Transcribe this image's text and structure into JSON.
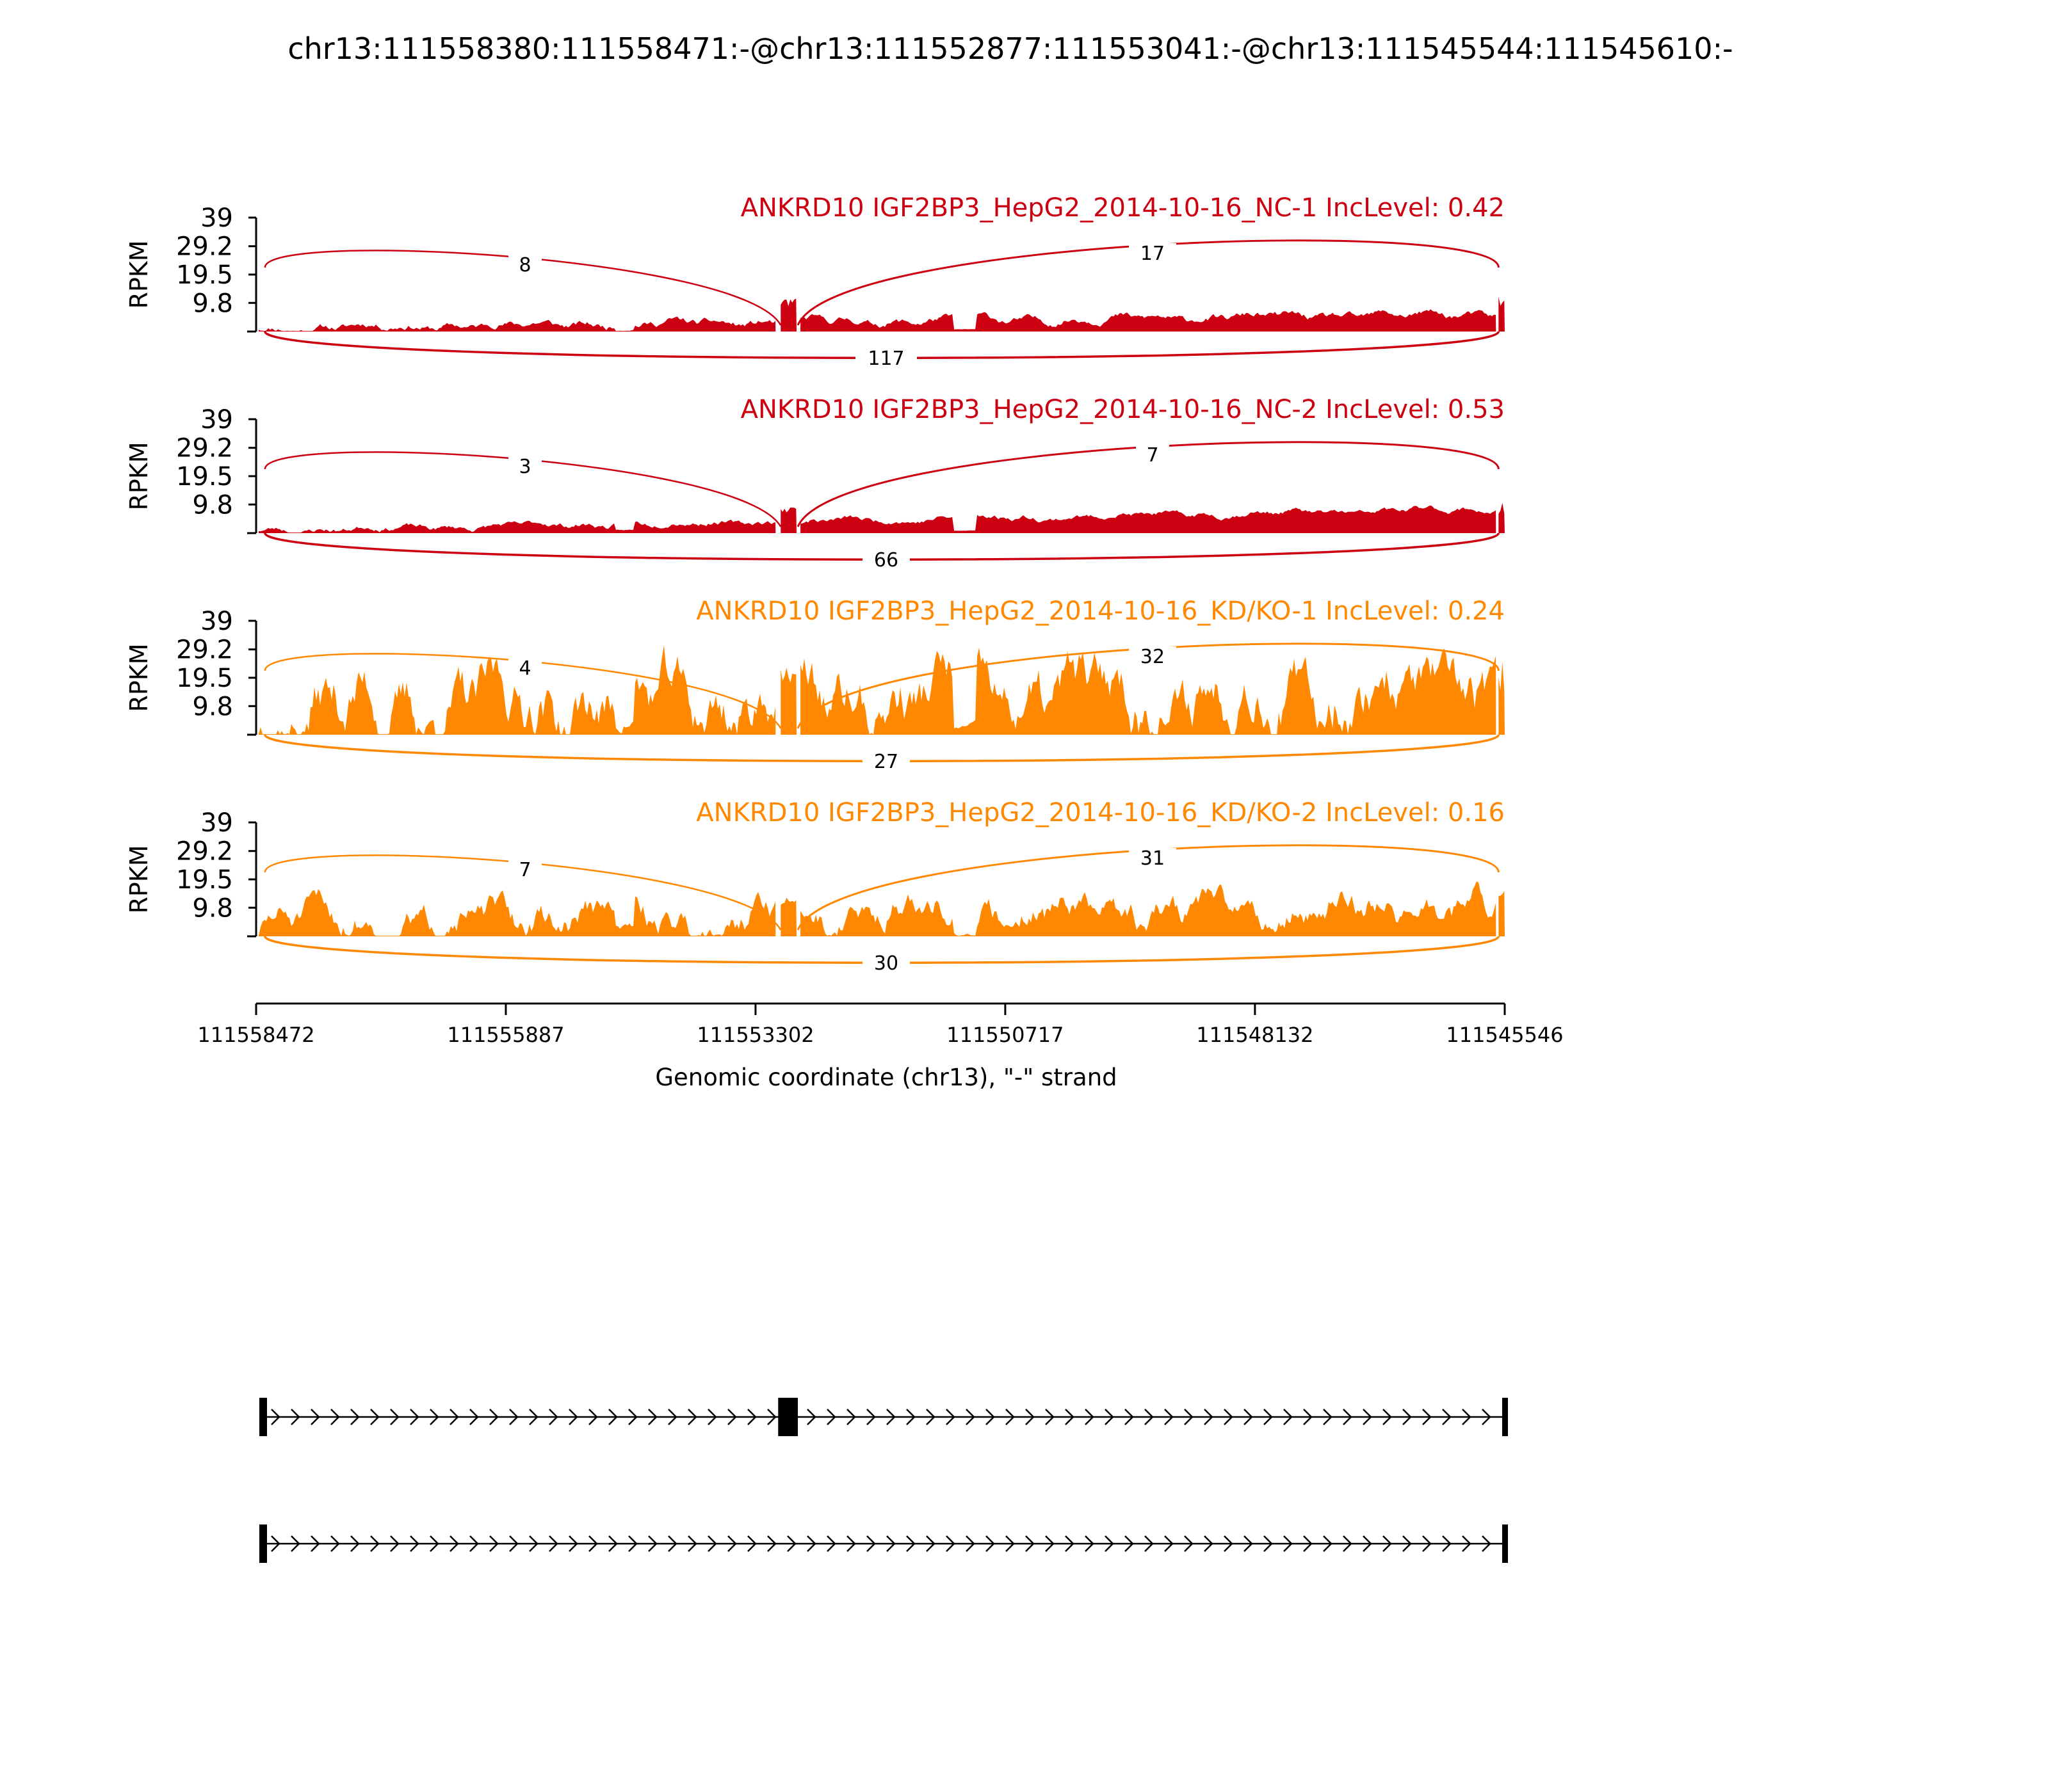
{
  "chart_data": {
    "type": "area",
    "title": "chr13:111558380:111558471:-@chr13:111552877:111553041:-@chr13:111545544:111545610:-",
    "xlabel": "Genomic coordinate (chr13), \"-\" strand",
    "x_ticks": [
      "111558472",
      "111555887",
      "111553302",
      "111550717",
      "111548132",
      "111545546"
    ],
    "xlim": [
      111558472,
      111545546
    ],
    "ylabel": "RPKM",
    "y_ticks": [
      "39",
      "29.2",
      "19.5",
      "9.8"
    ],
    "ylim": [
      0,
      39
    ],
    "exons": [
      {
        "start": 111558471,
        "end": 111558380
      },
      {
        "start": 111553041,
        "end": 111552877
      },
      {
        "start": 111545610,
        "end": 111545544
      }
    ],
    "series": [
      {
        "name": "ANKRD10 IGF2BP3_HepG2_2014-10-16_NC-1 IncLevel: 0.42",
        "color": "#cc0011",
        "baseline": 1.3,
        "peak": 10,
        "right_rise": 10,
        "jitter": 0.9,
        "seed": 11,
        "junctions": {
          "upstream_inclusion": "8",
          "downstream_inclusion": "17",
          "skipping": "117"
        }
      },
      {
        "name": "ANKRD10 IGF2BP3_HepG2_2014-10-16_NC-2 IncLevel: 0.53",
        "color": "#cc0011",
        "baseline": 1.0,
        "peak": 8,
        "right_rise": 16,
        "jitter": 0.9,
        "seed": 23,
        "junctions": {
          "upstream_inclusion": "3",
          "downstream_inclusion": "7",
          "skipping": "66"
        }
      },
      {
        "name": "ANKRD10 IGF2BP3_HepG2_2014-10-16_KD/KO-1 IncLevel: 0.24",
        "color": "#ff8800",
        "baseline": 9,
        "peak": 20,
        "right_rise": 14,
        "jitter": 1.0,
        "seed": 37,
        "junctions": {
          "upstream_inclusion": "4",
          "downstream_inclusion": "32",
          "skipping": "27"
        }
      },
      {
        "name": "ANKRD10 IGF2BP3_HepG2_2014-10-16_KD/KO-2 IncLevel: 0.16",
        "color": "#ff8800",
        "baseline": 5,
        "peak": 12,
        "right_rise": 12,
        "jitter": 0.9,
        "seed": 51,
        "junctions": {
          "upstream_inclusion": "7",
          "downstream_inclusion": "31",
          "skipping": "30"
        }
      }
    ],
    "isoforms": [
      {
        "exons": [
          0,
          1,
          2
        ]
      },
      {
        "exons": [
          0,
          2
        ]
      }
    ],
    "grid": false
  }
}
